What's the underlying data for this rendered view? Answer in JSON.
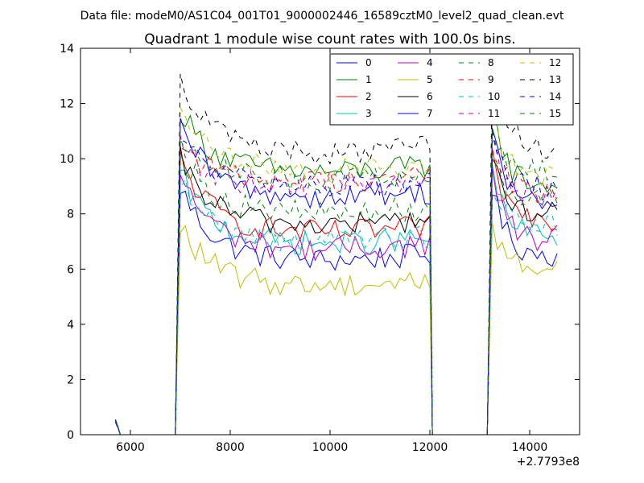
{
  "figure": {
    "suptitle": "Data file: modeM0/AS1C04_001T01_9000002446_16589cztM0_level2_quad_clean.evt"
  },
  "chart_data": {
    "type": "line",
    "title": "Quadrant 1 module wise count rates with 100.0s bins.",
    "xlabel": "",
    "ylabel": "",
    "x_offset_label": "+2.7793e8",
    "x_offset": 277930000,
    "xlim": [
      5000,
      15000
    ],
    "ylim": [
      0,
      14
    ],
    "x_ticks": [
      6000,
      8000,
      10000,
      12000,
      14000
    ],
    "y_ticks": [
      0,
      2,
      4,
      6,
      8,
      10,
      12,
      14
    ],
    "grid": false,
    "legend_position": "top-right",
    "legend_columns": 4,
    "segments": [
      {
        "x0": 5700,
        "x1": 6900,
        "shape": "drop",
        "start": 0.5,
        "end": 0.0
      },
      {
        "x0": 6900,
        "x1": 7000,
        "shape": "rise"
      },
      {
        "x0": 7000,
        "x1": 11950,
        "shape": "active"
      },
      {
        "x0": 11950,
        "x1": 12050,
        "shape": "fall"
      },
      {
        "x0": 12050,
        "x1": 13150,
        "shape": "zero"
      },
      {
        "x0": 13150,
        "x1": 13250,
        "shape": "rise"
      },
      {
        "x0": 13250,
        "x1": 14500,
        "shape": "active"
      }
    ],
    "series": [
      {
        "name": "0",
        "color": "#0000ff",
        "dash": "solid",
        "peak": 9.0,
        "level": 6.3,
        "end_level": 6.5
      },
      {
        "name": "1",
        "color": "#008000",
        "dash": "solid",
        "peak": 11.8,
        "level": 9.5,
        "end_level": 9.0
      },
      {
        "name": "2",
        "color": "#ff0000",
        "dash": "solid",
        "peak": 10.0,
        "level": 7.3,
        "end_level": 7.8
      },
      {
        "name": "3",
        "color": "#00bfbf",
        "dash": "solid",
        "peak": 9.5,
        "level": 6.9,
        "end_level": 7.2
      },
      {
        "name": "4",
        "color": "#bf00bf",
        "dash": "solid",
        "peak": 9.5,
        "level": 6.7,
        "end_level": 7.0
      },
      {
        "name": "5",
        "color": "#bfbf00",
        "dash": "solid",
        "peak": 7.6,
        "level": 5.4,
        "end_level": 6.0
      },
      {
        "name": "6",
        "color": "#000000",
        "dash": "solid",
        "peak": 10.0,
        "level": 7.6,
        "end_level": 8.0
      },
      {
        "name": "7",
        "color": "#0000ff",
        "dash": "solid",
        "peak": 11.2,
        "level": 8.6,
        "end_level": 8.3
      },
      {
        "name": "8",
        "color": "#008000",
        "dash": "dashed",
        "peak": 10.2,
        "level": 8.0,
        "end_level": 8.5
      },
      {
        "name": "9",
        "color": "#ff0000",
        "dash": "dashed",
        "peak": 10.5,
        "level": 9.2,
        "end_level": 8.8
      },
      {
        "name": "10",
        "color": "#00bfbf",
        "dash": "dashed",
        "peak": 9.2,
        "level": 7.0,
        "end_level": 7.6
      },
      {
        "name": "11",
        "color": "#bf00bf",
        "dash": "dashed",
        "peak": 10.4,
        "level": 9.0,
        "end_level": 8.6
      },
      {
        "name": "12",
        "color": "#bfbf00",
        "dash": "dashed",
        "peak": 11.6,
        "level": 9.6,
        "end_level": 9.3
      },
      {
        "name": "13",
        "color": "#000000",
        "dash": "dashed",
        "peak": 13.0,
        "level": 10.2,
        "end_level": 10.4
      },
      {
        "name": "14",
        "color": "#0000ff",
        "dash": "dashed",
        "peak": 10.8,
        "level": 9.0,
        "end_level": 8.9
      },
      {
        "name": "15",
        "color": "#008000",
        "dash": "dashed",
        "peak": 11.0,
        "level": 9.2,
        "end_level": 9.5
      }
    ]
  }
}
